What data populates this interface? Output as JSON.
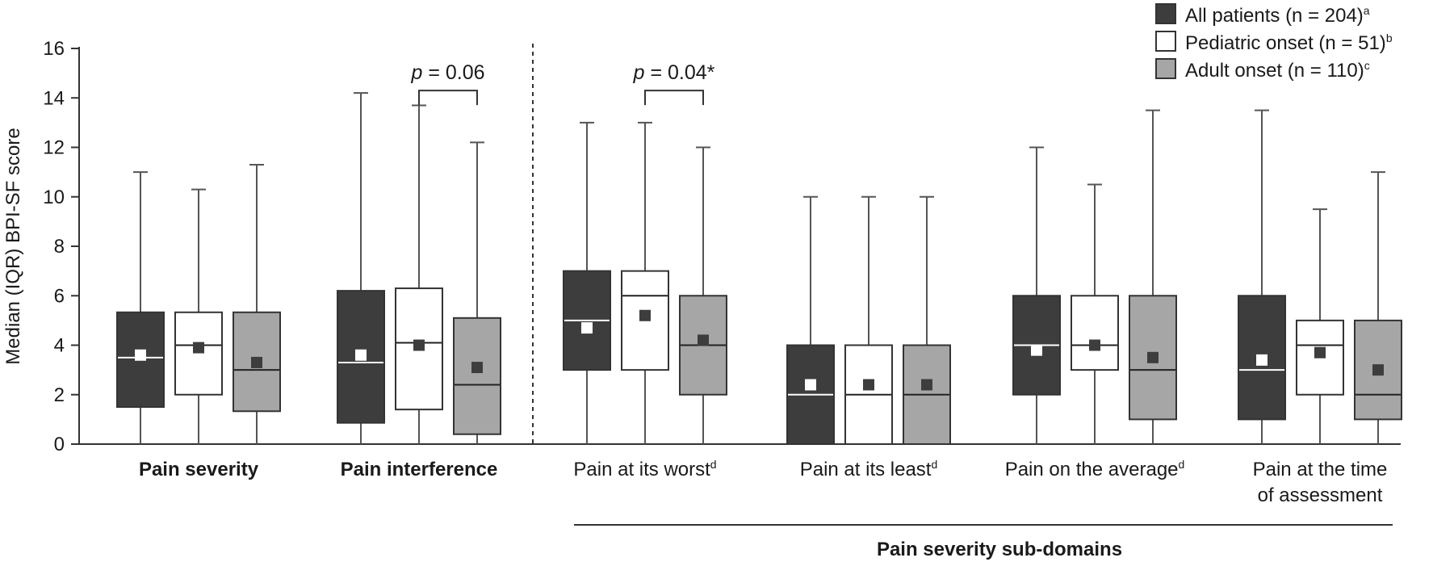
{
  "chart_data": {
    "type": "boxplot",
    "ylabel": "Median (IQR) BPI-SF score",
    "ylim": [
      0,
      16
    ],
    "yticks": [
      0,
      2,
      4,
      6,
      8,
      10,
      12,
      14,
      16
    ],
    "colors": {
      "All patients": "#3d3d3d",
      "Pediatric onset": "#ffffff",
      "Adult onset": "#a6a6a6",
      "mean_on_dark": "#ffffff",
      "mean_on_light": "#3d3d3d"
    },
    "legend": {
      "position": "top-right",
      "entries": [
        {
          "series": "All patients",
          "label": "All patients (n = 204)",
          "sup": "a"
        },
        {
          "series": "Pediatric onset",
          "label": "Pediatric onset (n = 51)",
          "sup": "b"
        },
        {
          "series": "Adult onset",
          "label": "Adult onset (n = 110)",
          "sup": "c"
        }
      ]
    },
    "categories": [
      {
        "lines": [
          "Pain severity"
        ],
        "sup": "",
        "bold": true
      },
      {
        "lines": [
          "Pain interference"
        ],
        "sup": "",
        "bold": true
      },
      {
        "lines": [
          "Pain at its worst"
        ],
        "sup": "d",
        "bold": false
      },
      {
        "lines": [
          "Pain at its least"
        ],
        "sup": "d",
        "bold": false
      },
      {
        "lines": [
          "Pain on the average"
        ],
        "sup": "d",
        "bold": false
      },
      {
        "lines": [
          "Pain at the time",
          "of assessment"
        ],
        "sup": "",
        "bold": false
      }
    ],
    "series": [
      {
        "name": "All patients",
        "boxes": [
          {
            "min": 0,
            "q1": 1.5,
            "median": 3.5,
            "q3": 5.33,
            "max": 11,
            "mean": 3.6
          },
          {
            "min": 0,
            "q1": 0.86,
            "median": 3.3,
            "q3": 6.2,
            "max": 14.2,
            "mean": 3.6
          },
          {
            "min": 0,
            "q1": 3,
            "median": 5,
            "q3": 7,
            "max": 13,
            "mean": 4.7
          },
          {
            "min": 0,
            "q1": 0,
            "median": 2,
            "q3": 4,
            "max": 10,
            "mean": 2.4
          },
          {
            "min": 0,
            "q1": 2,
            "median": 4,
            "q3": 6,
            "max": 12,
            "mean": 3.8
          },
          {
            "min": 0,
            "q1": 1,
            "median": 3,
            "q3": 6,
            "max": 13.5,
            "mean": 3.4
          }
        ]
      },
      {
        "name": "Pediatric onset",
        "boxes": [
          {
            "min": 0,
            "q1": 2,
            "median": 4,
            "q3": 5.33,
            "max": 10.3,
            "mean": 3.9
          },
          {
            "min": 0,
            "q1": 1.4,
            "median": 4.1,
            "q3": 6.3,
            "max": 13.7,
            "mean": 4.0
          },
          {
            "min": 0,
            "q1": 3,
            "median": 6,
            "q3": 7,
            "max": 13,
            "mean": 5.2
          },
          {
            "min": 0,
            "q1": 0,
            "median": 2,
            "q3": 4,
            "max": 10,
            "mean": 2.4
          },
          {
            "min": 0,
            "q1": 3,
            "median": 4,
            "q3": 6,
            "max": 10.5,
            "mean": 4.0
          },
          {
            "min": 0,
            "q1": 2,
            "median": 4,
            "q3": 5,
            "max": 9.5,
            "mean": 3.7
          }
        ]
      },
      {
        "name": "Adult onset",
        "boxes": [
          {
            "min": 0,
            "q1": 1.33,
            "median": 3,
            "q3": 5.33,
            "max": 11.3,
            "mean": 3.3
          },
          {
            "min": 0,
            "q1": 0.4,
            "median": 2.4,
            "q3": 5.1,
            "max": 12.2,
            "mean": 3.1
          },
          {
            "min": 0,
            "q1": 2,
            "median": 4,
            "q3": 6,
            "max": 12,
            "mean": 4.2
          },
          {
            "min": 0,
            "q1": 0,
            "median": 2,
            "q3": 4,
            "max": 10,
            "mean": 2.4
          },
          {
            "min": 0,
            "q1": 1,
            "median": 3,
            "q3": 6,
            "max": 13.5,
            "mean": 3.5
          },
          {
            "min": 0,
            "q1": 1,
            "median": 2,
            "q3": 5,
            "max": 11,
            "mean": 3.0
          }
        ]
      }
    ],
    "annotations": [
      {
        "category": 1,
        "from_series": 1,
        "to_series": 2,
        "italic_prefix": "p",
        "text": " = 0.06",
        "y": 14.3
      },
      {
        "category": 2,
        "from_series": 1,
        "to_series": 2,
        "italic_prefix": "p",
        "text": " = 0.04*",
        "y": 14.3
      }
    ],
    "group_label": {
      "text": "Pain severity sub-domains",
      "from_category": 2,
      "to_category": 5
    }
  }
}
